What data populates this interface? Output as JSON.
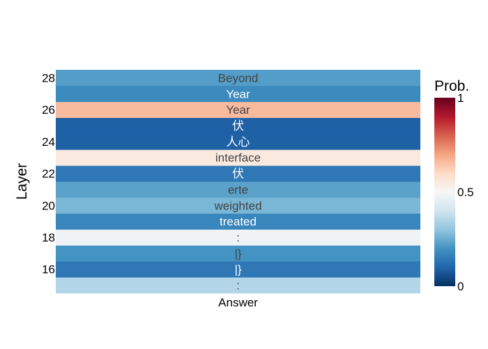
{
  "chart_data": {
    "type": "heatmap",
    "title": "",
    "xlabel": "",
    "ylabel": "Layer",
    "x_categories": [
      "Answer"
    ],
    "y_ticks": [
      16,
      18,
      20,
      22,
      24,
      26,
      28
    ],
    "colorbar": {
      "title": "Prob.",
      "min": 0,
      "max": 1,
      "ticks": [
        0,
        0.5,
        1
      ],
      "colorscale": [
        "#053061",
        "#2166ac",
        "#4393c3",
        "#92c5de",
        "#d1e5f0",
        "#f7f7f7",
        "#fddbc7",
        "#f4a582",
        "#d6604d",
        "#b2182b",
        "#67001f"
      ]
    },
    "cells": [
      {
        "layer": 15,
        "token": ":",
        "prob": 0.35
      },
      {
        "layer": 16,
        "token": "|}",
        "prob": 0.14
      },
      {
        "layer": 17,
        "token": "|}",
        "prob": 0.2
      },
      {
        "layer": 18,
        "token": ":",
        "prob": 0.48
      },
      {
        "layer": 19,
        "token": "treated",
        "prob": 0.17
      },
      {
        "layer": 20,
        "token": "weighted",
        "prob": 0.27
      },
      {
        "layer": 21,
        "token": "erte",
        "prob": 0.23
      },
      {
        "layer": 22,
        "token": "伏",
        "prob": 0.14
      },
      {
        "layer": 23,
        "token": "interface",
        "prob": 0.55
      },
      {
        "layer": 24,
        "token": "人心",
        "prob": 0.09
      },
      {
        "layer": 25,
        "token": "伏",
        "prob": 0.09
      },
      {
        "layer": 26,
        "token": "Year",
        "prob": 0.66
      },
      {
        "layer": 27,
        "token": "Year",
        "prob": 0.18
      },
      {
        "layer": 28,
        "token": "Beyond",
        "prob": 0.22
      }
    ]
  }
}
